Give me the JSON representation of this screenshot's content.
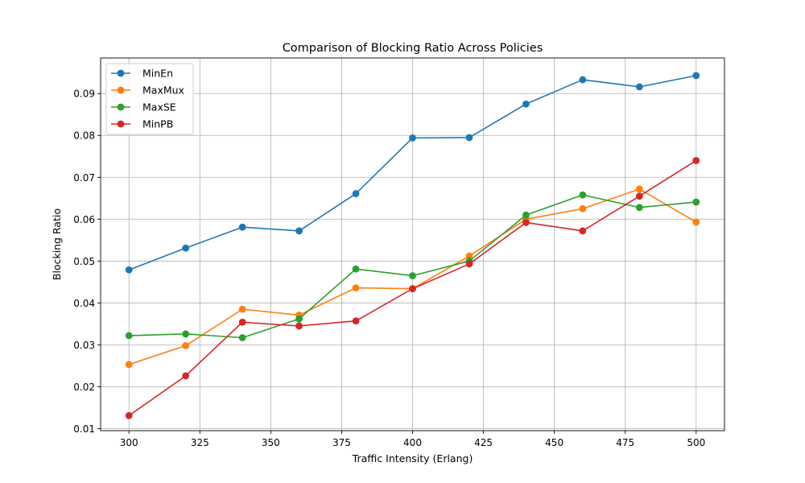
{
  "chart_data": {
    "type": "line",
    "title": "Comparison of Blocking Ratio Across Policies",
    "xlabel": "Traffic Intensity (Erlang)",
    "ylabel": "Blocking Ratio",
    "xlim": [
      290,
      510
    ],
    "ylim": [
      0.0095,
      0.0985
    ],
    "xticks": [
      300,
      325,
      350,
      375,
      400,
      425,
      450,
      475,
      500
    ],
    "xtick_labels": [
      "300",
      "325",
      "350",
      "375",
      "400",
      "425",
      "450",
      "475",
      "500"
    ],
    "yticks": [
      0.01,
      0.02,
      0.03,
      0.04,
      0.05,
      0.06,
      0.07,
      0.08,
      0.09
    ],
    "ytick_labels": [
      "0.01",
      "0.02",
      "0.03",
      "0.04",
      "0.05",
      "0.06",
      "0.07",
      "0.08",
      "0.09"
    ],
    "grid": true,
    "legend_position": "top-left",
    "x": [
      300,
      320,
      340,
      360,
      380,
      400,
      420,
      440,
      460,
      480,
      500
    ],
    "series": [
      {
        "name": "MinEn",
        "color": "#1f77b4",
        "values": [
          0.0479,
          0.0531,
          0.0581,
          0.0572,
          0.0661,
          0.0794,
          0.0795,
          0.0875,
          0.0933,
          0.0916,
          0.0943
        ]
      },
      {
        "name": "MaxMux",
        "color": "#ff7f0e",
        "values": [
          0.0253,
          0.0298,
          0.0385,
          0.0371,
          0.0436,
          0.0434,
          0.0512,
          0.06,
          0.0625,
          0.0672,
          0.0593
        ]
      },
      {
        "name": "MaxSE",
        "color": "#2ca02c",
        "values": [
          0.0322,
          0.0326,
          0.0317,
          0.0362,
          0.0481,
          0.0465,
          0.05,
          0.061,
          0.0658,
          0.0628,
          0.0641
        ]
      },
      {
        "name": "MinPB",
        "color": "#d62728",
        "values": [
          0.0131,
          0.0226,
          0.0354,
          0.0345,
          0.0357,
          0.0434,
          0.0493,
          0.0592,
          0.0572,
          0.0655,
          0.074
        ]
      }
    ]
  }
}
